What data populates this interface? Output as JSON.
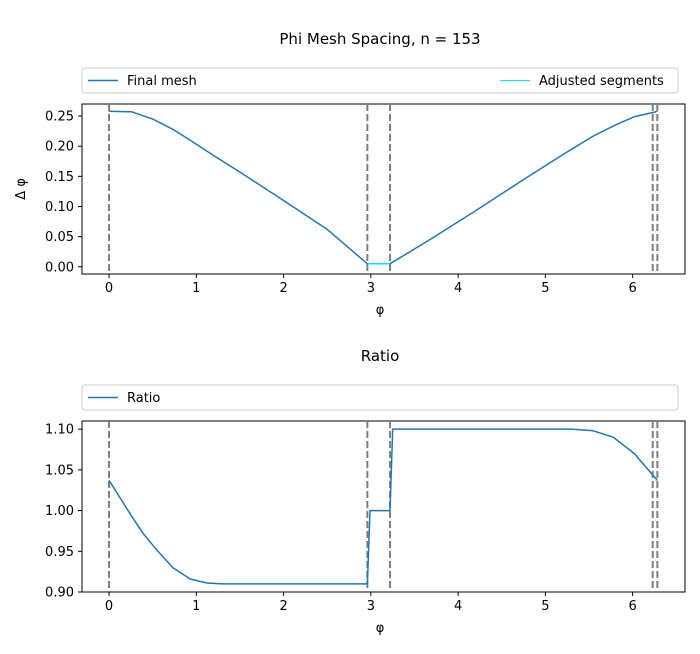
{
  "chart_data": [
    {
      "type": "line",
      "title": "Phi Mesh Spacing, n = 153",
      "xlabel": "φ",
      "ylabel": "Δ φ",
      "xlim": [
        -0.31,
        6.6
      ],
      "ylim": [
        -0.012,
        0.27
      ],
      "xticks": [
        0,
        1,
        2,
        3,
        4,
        5,
        6
      ],
      "yticks": [
        0.0,
        0.05,
        0.1,
        0.15,
        0.2,
        0.25
      ],
      "ytick_labels": [
        "0.00",
        "0.05",
        "0.10",
        "0.15",
        "0.20",
        "0.25"
      ],
      "grid": false,
      "legend_placement": "above plot",
      "vlines": [
        0,
        2.96,
        3.22,
        6.23,
        6.283
      ],
      "series": [
        {
          "name": "Final mesh",
          "color": "#1f77b4",
          "x": [
            0,
            0.26,
            0.5,
            0.73,
            0.95,
            1.16,
            1.5,
            2.0,
            2.5,
            2.96,
            3.22,
            3.7,
            4.2,
            4.7,
            5.2,
            5.55,
            5.8,
            6.02,
            6.24,
            6.283
          ],
          "y": [
            0.258,
            0.257,
            0.245,
            0.228,
            0.208,
            0.188,
            0.157,
            0.11,
            0.062,
            0.005,
            0.005,
            0.047,
            0.093,
            0.14,
            0.186,
            0.217,
            0.235,
            0.249,
            0.256,
            0.258
          ]
        },
        {
          "name": "Adjusted segments",
          "color": "#00e5ff",
          "x": [
            2.96,
            3.22
          ],
          "y": [
            0.005,
            0.005
          ]
        }
      ]
    },
    {
      "type": "line",
      "title": "Ratio",
      "xlabel": "φ",
      "ylabel": "",
      "xlim": [
        -0.31,
        6.6
      ],
      "ylim": [
        0.9,
        1.11
      ],
      "xticks": [
        0,
        1,
        2,
        3,
        4,
        5,
        6
      ],
      "yticks": [
        0.9,
        0.95,
        1.0,
        1.05,
        1.1
      ],
      "ytick_labels": [
        "0.90",
        "0.95",
        "1.00",
        "1.05",
        "1.10"
      ],
      "grid": false,
      "legend_placement": "above plot",
      "vlines": [
        0,
        2.96,
        3.22,
        6.23,
        6.283
      ],
      "series": [
        {
          "name": "Ratio",
          "color": "#1f77b4",
          "x": [
            0,
            0.13,
            0.26,
            0.39,
            0.52,
            0.73,
            0.93,
            1.12,
            1.3,
            1.6,
            2.0,
            2.5,
            2.95,
            2.96,
            2.99,
            3.21,
            3.22,
            3.25,
            4.0,
            4.7,
            5.3,
            5.55,
            5.78,
            6.02,
            6.18,
            6.283
          ],
          "y": [
            1.037,
            1.015,
            0.993,
            0.972,
            0.955,
            0.93,
            0.916,
            0.911,
            0.91,
            0.91,
            0.91,
            0.91,
            0.91,
            0.91,
            1.0,
            1.0,
            1.0,
            1.1,
            1.1,
            1.1,
            1.1,
            1.098,
            1.09,
            1.07,
            1.05,
            1.037
          ]
        }
      ]
    }
  ]
}
